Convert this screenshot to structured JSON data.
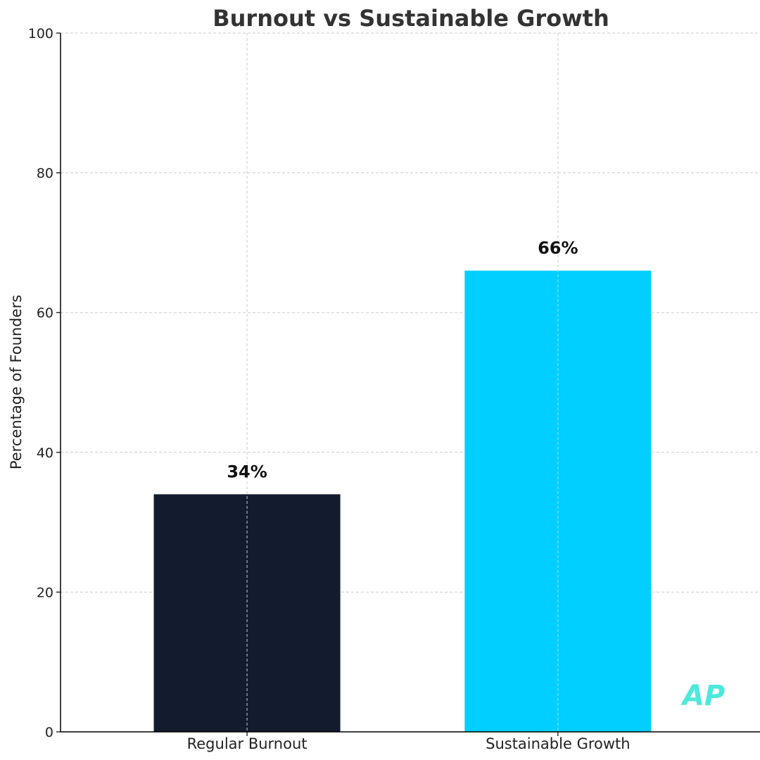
{
  "chart_data": {
    "type": "bar",
    "title": "Burnout vs Sustainable Growth",
    "ylabel": "Percentage of Founders",
    "xlabel": "",
    "ylim": [
      0,
      100
    ],
    "yticks": [
      0,
      20,
      40,
      60,
      80,
      100
    ],
    "grid": true,
    "categories": [
      "Regular Burnout",
      "Sustainable Growth"
    ],
    "values": [
      34,
      66
    ],
    "data_labels": [
      "34%",
      "66%"
    ],
    "colors": [
      "#131c2e",
      "#00cfff"
    ]
  },
  "watermark": "AP"
}
